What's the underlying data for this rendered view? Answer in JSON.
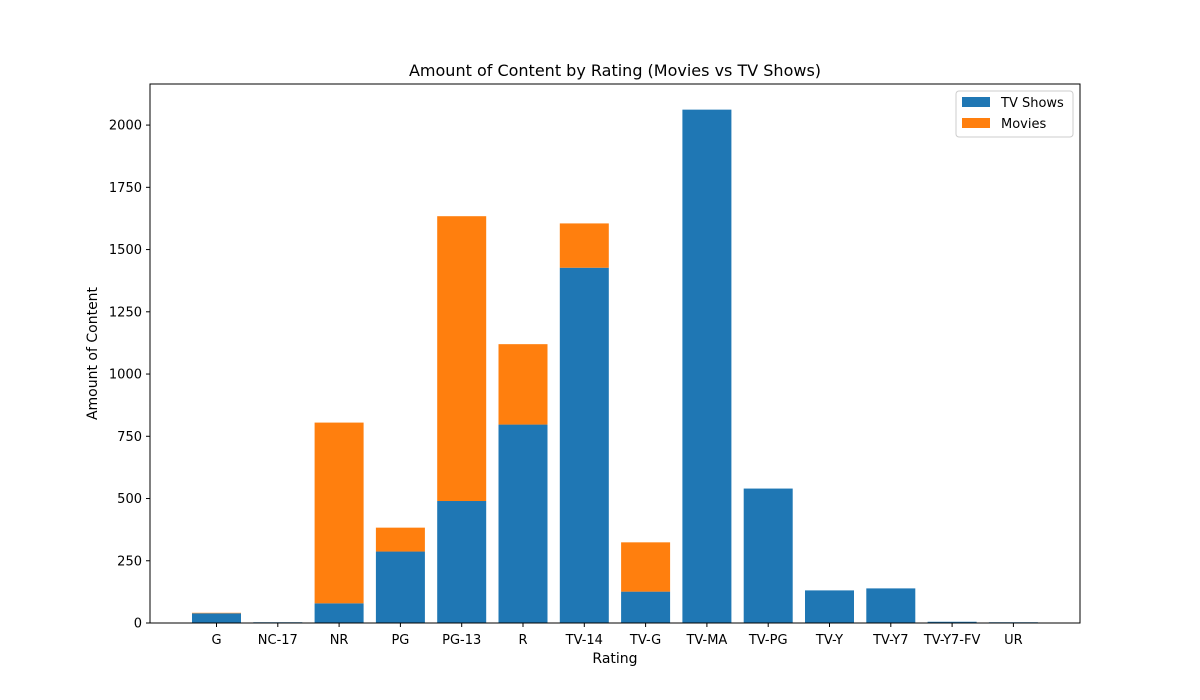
{
  "chart_data": {
    "type": "bar",
    "stacked": true,
    "title": "Amount of Content by Rating (Movies vs TV Shows)",
    "xlabel": "Rating",
    "ylabel": "Amount of Content",
    "categories": [
      "G",
      "NC-17",
      "NR",
      "PG",
      "PG-13",
      "R",
      "TV-14",
      "TV-G",
      "TV-MA",
      "TV-PG",
      "TV-Y",
      "TV-Y7",
      "TV-Y7-FV",
      "UR"
    ],
    "series": [
      {
        "name": "TV Shows",
        "color": "#1f77b4",
        "values": [
          39,
          3,
          79,
          287,
          490,
          797,
          1427,
          126,
          2062,
          540,
          131,
          139,
          5,
          3
        ]
      },
      {
        "name": "Movies",
        "color": "#ff7f0e",
        "values": [
          2,
          0,
          726,
          96,
          1144,
          323,
          178,
          198,
          0,
          0,
          0,
          0,
          0,
          0
        ]
      }
    ],
    "ylim": [
      0,
      2165
    ],
    "yticks": [
      0,
      250,
      500,
      750,
      1000,
      1250,
      1500,
      1750,
      2000
    ],
    "grid": false,
    "legend_position": "top-right"
  }
}
